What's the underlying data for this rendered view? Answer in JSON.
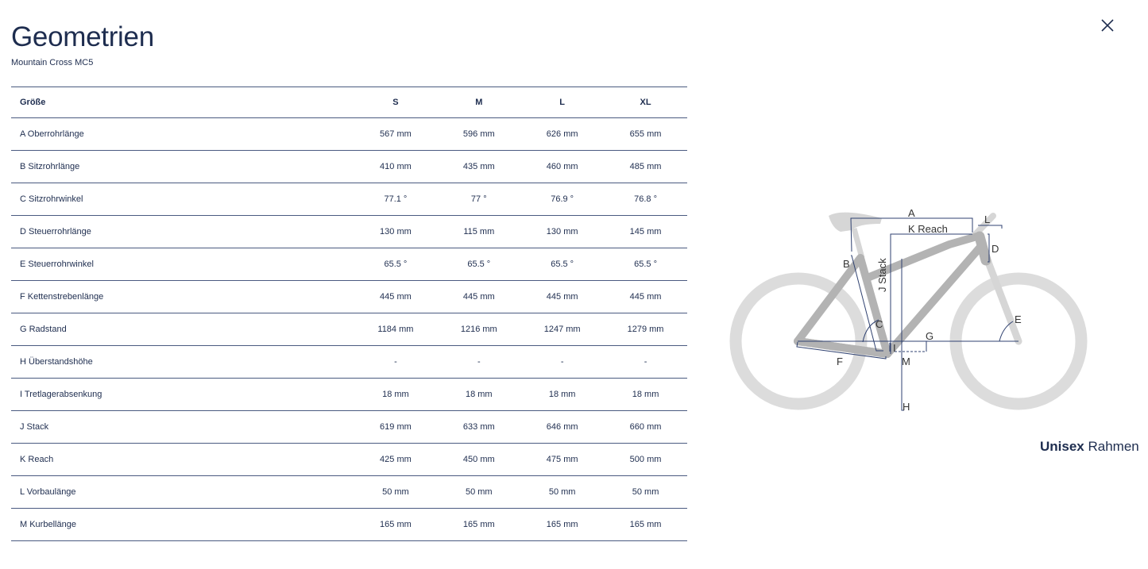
{
  "title": "Geometrien",
  "subtitle": "Mountain Cross MC5",
  "close_icon": "close-x-icon",
  "table": {
    "header": [
      "Größe",
      "S",
      "M",
      "L",
      "XL"
    ],
    "rows": [
      [
        "A Oberrohrlänge",
        "567 mm",
        "596 mm",
        "626 mm",
        "655 mm"
      ],
      [
        "B Sitzrohrlänge",
        "410 mm",
        "435 mm",
        "460 mm",
        "485 mm"
      ],
      [
        "C Sitzrohrwinkel",
        "77.1 °",
        "77 °",
        "76.9 °",
        "76.8 °"
      ],
      [
        "D Steuerrohrlänge",
        "130 mm",
        "115 mm",
        "130 mm",
        "145 mm"
      ],
      [
        "E Steuerrohrwinkel",
        "65.5 °",
        "65.5 °",
        "65.5 °",
        "65.5 °"
      ],
      [
        "F Kettenstrebenlänge",
        "445 mm",
        "445 mm",
        "445 mm",
        "445 mm"
      ],
      [
        "G Radstand",
        "1184 mm",
        "1216 mm",
        "1247 mm",
        "1279 mm"
      ],
      [
        "H Überstandshöhe",
        "-",
        "-",
        "-",
        "-"
      ],
      [
        "I Tretlagerabsenkung",
        "18 mm",
        "18 mm",
        "18 mm",
        "18 mm"
      ],
      [
        "J Stack",
        "619 mm",
        "633 mm",
        "646 mm",
        "660 mm"
      ],
      [
        "K Reach",
        "425 mm",
        "450 mm",
        "475 mm",
        "500 mm"
      ],
      [
        "L Vorbaulänge",
        "50 mm",
        "50 mm",
        "50 mm",
        "50 mm"
      ],
      [
        "M Kurbellänge",
        "165 mm",
        "165 mm",
        "165 mm",
        "165 mm"
      ]
    ]
  },
  "diagram": {
    "labels": {
      "A": "A",
      "B": "B",
      "C": "C",
      "D": "D",
      "E": "E",
      "F": "F",
      "G": "G",
      "H": "H",
      "I": "I",
      "J": "J Stack",
      "K": "K Reach",
      "L": "L",
      "M": "M"
    },
    "colors": {
      "wheel": "#dcdcdc",
      "frame": "#b3b3b3",
      "fork": "#d6d6d6",
      "line": "#2f4170"
    }
  },
  "caption": {
    "bold": "Unisex",
    "rest": " Rahmen"
  }
}
